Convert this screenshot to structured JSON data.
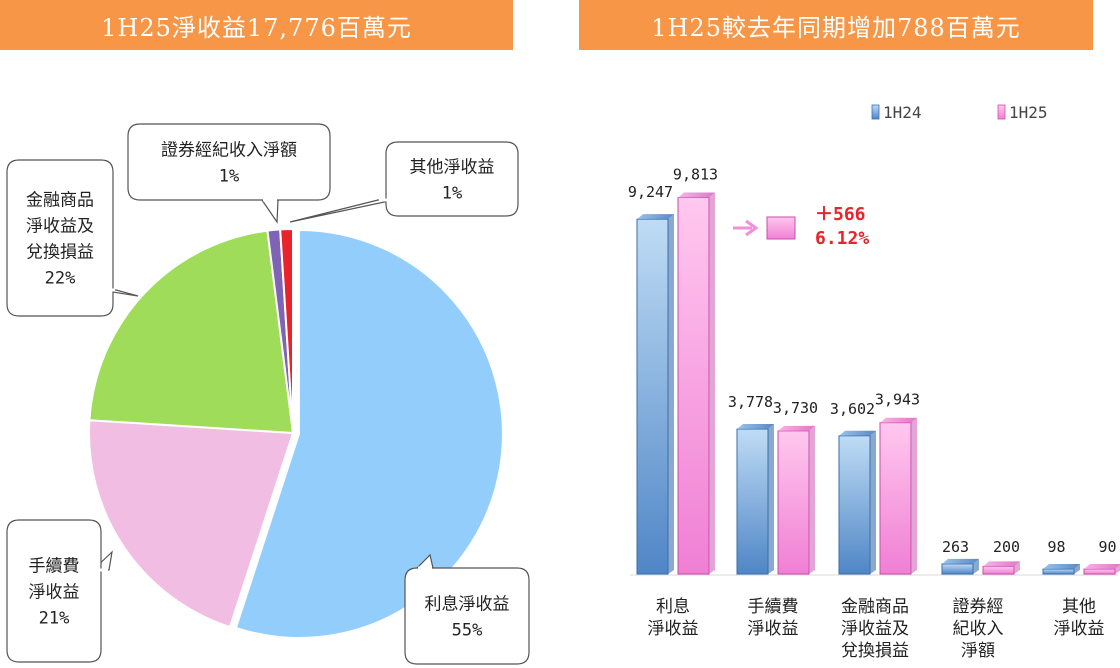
{
  "left_banner": "1H25淨收益17,776百萬元",
  "right_banner": "1H25較去年同期增加788百萬元",
  "chart_data": [
    {
      "type": "pie",
      "slices": [
        {
          "label": [
            "利息淨收益"
          ],
          "value": 55,
          "pct_label": "55%",
          "color": "#92cdfb"
        },
        {
          "label": [
            "手續費",
            "淨收益"
          ],
          "value": 21,
          "pct_label": "21%",
          "color": "#f1bde3"
        },
        {
          "label": [
            "金融商品",
            "淨收益及",
            "兌換損益"
          ],
          "value": 22,
          "pct_label": "22%",
          "color": "#9fdc5a"
        },
        {
          "label": [
            "證券經紀收入淨額"
          ],
          "value": 1,
          "pct_label": "1%",
          "color": "#7e63b6"
        },
        {
          "label": [
            "其他淨收益"
          ],
          "value": 1,
          "pct_label": "1%",
          "color": "#e8232b"
        }
      ]
    },
    {
      "type": "bar",
      "categories": [
        [
          "利息",
          "淨收益"
        ],
        [
          "手續費",
          "淨收益"
        ],
        [
          "金融商品",
          "淨收益及",
          "兌換損益"
        ],
        [
          "證券經",
          "紀收入",
          "淨額"
        ],
        [
          "其他",
          "淨收益"
        ]
      ],
      "series": [
        {
          "name": "1H24",
          "values": [
            9247,
            3778,
            3602,
            263,
            98
          ],
          "labels": [
            "9,247",
            "3,778",
            "3,602",
            "263",
            "98"
          ],
          "color": "#5b9bd5"
        },
        {
          "name": "1H25",
          "values": [
            9813,
            3730,
            3943,
            200,
            90
          ],
          "labels": [
            "9,813",
            "3,730",
            "3,943",
            "200",
            "90"
          ],
          "color": "#f48ed8"
        }
      ],
      "legend_position": "top-right",
      "annotation": {
        "change": "＋566",
        "pct": "6.12%"
      }
    }
  ]
}
